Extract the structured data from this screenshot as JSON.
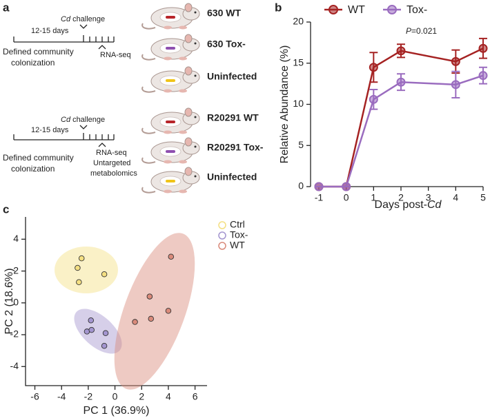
{
  "panel_labels": [
    "a",
    "b",
    "c"
  ],
  "schematic": {
    "timelines": [
      {
        "challenge_italic": "Cd",
        "challenge": "challenge",
        "duration": "12-15 days",
        "colonization": [
          "Defined community",
          "colonization"
        ],
        "sampling": [
          "RNA-seq"
        ]
      },
      {
        "challenge_italic": "Cd",
        "challenge": "challenge",
        "duration": "12-15 days",
        "colonization": [
          "Defined community",
          "colonization"
        ],
        "sampling": [
          "RNA-seq",
          "Untargeted",
          "metabolomics"
        ]
      }
    ],
    "groups": [
      {
        "label": "630 WT",
        "color": "#b8252a"
      },
      {
        "label": "630 Tox-",
        "color": "#8e4fb0"
      },
      {
        "label": "Uninfected",
        "color": "#f0c419"
      },
      {
        "label": "R20291 WT",
        "color": "#b8252a"
      },
      {
        "label": "R20291 Tox-",
        "color": "#8e4fb0"
      },
      {
        "label": "Uninfected",
        "color": "#f0c419"
      }
    ]
  },
  "chart_data": [
    {
      "type": "line",
      "x": [
        -1,
        0,
        1,
        2,
        4,
        5
      ],
      "xlim": [
        -1,
        5
      ],
      "xticks": [
        -1,
        0,
        1,
        2,
        3,
        4,
        5
      ],
      "ylim": [
        0,
        20
      ],
      "yticks": [
        0,
        5,
        10,
        15,
        20
      ],
      "y_label": "Relative Abundance (%)",
      "x_label": "Days post-",
      "x_label_italic": "Cd",
      "annotation_italic": "P",
      "annotation": "=0.021",
      "legend": "top",
      "series": [
        {
          "name": "WT",
          "color": "#a52222",
          "values": [
            0,
            0,
            14.5,
            16.5,
            15.2,
            16.8
          ],
          "errors": [
            0,
            0,
            1.8,
            0.8,
            1.4,
            1.2
          ]
        },
        {
          "name": "Tox-",
          "color": "#9a6cbf",
          "values": [
            0,
            0,
            10.6,
            12.7,
            12.4,
            13.5
          ],
          "errors": [
            0,
            0,
            1.2,
            1.0,
            1.6,
            1.0
          ]
        }
      ]
    },
    {
      "type": "scatter",
      "xlim": [
        -6.7,
        6.9
      ],
      "xticks": [
        -6,
        -4,
        -2,
        0,
        2,
        4,
        6
      ],
      "ylim": [
        -5.2,
        5.4
      ],
      "yticks": [
        -4,
        -2,
        0,
        2,
        4
      ],
      "x_label": "PC 1 (36.9%)",
      "y_label": "PC 2 (18.6%)",
      "legend": "top right",
      "series": [
        {
          "name": "Ctrl",
          "color": "#f4df82",
          "x": [
            -2.5,
            -2.8,
            -2.7,
            -0.8
          ],
          "values": [
            2.8,
            2.2,
            1.3,
            1.8
          ]
        },
        {
          "name": "Tox-",
          "color": "#a395cf",
          "x": [
            -1.8,
            -2.1,
            -1.75,
            -0.7,
            -0.8
          ],
          "values": [
            -1.1,
            -1.8,
            -1.7,
            -1.9,
            -2.7
          ]
        },
        {
          "name": "WT",
          "color": "#d98a7a",
          "x": [
            4.2,
            2.6,
            2.7,
            4.0,
            1.5
          ],
          "values": [
            2.9,
            0.4,
            -1.0,
            -0.5,
            -1.2
          ]
        }
      ]
    }
  ]
}
